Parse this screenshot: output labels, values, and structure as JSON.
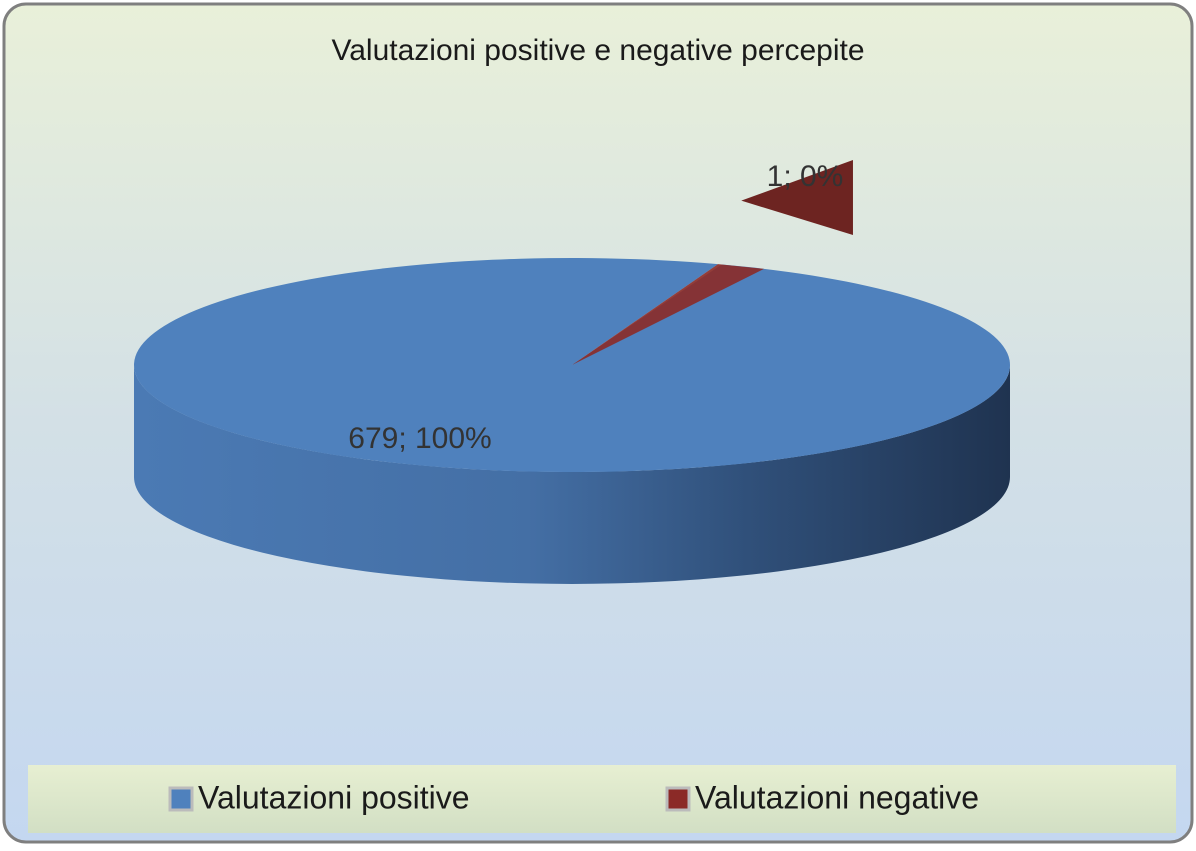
{
  "chart_data": {
    "type": "pie",
    "title": "Valutazioni positive e negative percepite",
    "categories": [
      "Valutazioni positive",
      "Valutazioni negative"
    ],
    "values": [
      679,
      1
    ],
    "value_labels": [
      "679; 100%",
      "1; 0%"
    ],
    "colors": [
      "#4f81bd",
      "#8b2a27"
    ],
    "legend": "bottom"
  }
}
